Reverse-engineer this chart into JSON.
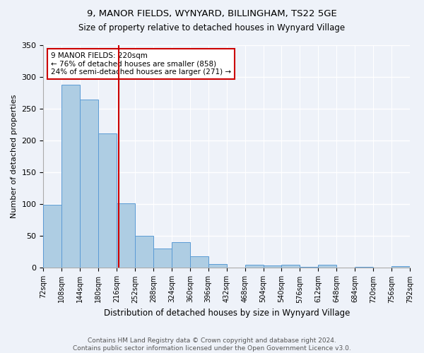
{
  "title1": "9, MANOR FIELDS, WYNYARD, BILLINGHAM, TS22 5GE",
  "title2": "Size of property relative to detached houses in Wynyard Village",
  "xlabel": "Distribution of detached houses by size in Wynyard Village",
  "ylabel": "Number of detached properties",
  "bar_values": [
    99,
    288,
    265,
    211,
    102,
    50,
    30,
    40,
    18,
    6,
    0,
    5,
    4,
    5,
    2,
    5,
    1,
    2,
    0,
    3
  ],
  "tick_labels": [
    "72sqm",
    "108sqm",
    "144sqm",
    "180sqm",
    "216sqm",
    "252sqm",
    "288sqm",
    "324sqm",
    "360sqm",
    "396sqm",
    "432sqm",
    "468sqm",
    "504sqm",
    "540sqm",
    "576sqm",
    "612sqm",
    "648sqm",
    "684sqm",
    "720sqm",
    "756sqm",
    "792sqm"
  ],
  "bar_color": "#aecde3",
  "bar_edge_color": "#5b9bd5",
  "vline_color": "#cc0000",
  "vline_pos": 3.611,
  "annotation_text": "9 MANOR FIELDS: 220sqm\n← 76% of detached houses are smaller (858)\n24% of semi-detached houses are larger (271) →",
  "annotation_box_color": "#cc0000",
  "ylim": [
    0,
    350
  ],
  "yticks": [
    0,
    50,
    100,
    150,
    200,
    250,
    300,
    350
  ],
  "background_color": "#eef2f9",
  "grid_color": "#ffffff",
  "footer": "Contains HM Land Registry data © Crown copyright and database right 2024.\nContains public sector information licensed under the Open Government Licence v3.0."
}
